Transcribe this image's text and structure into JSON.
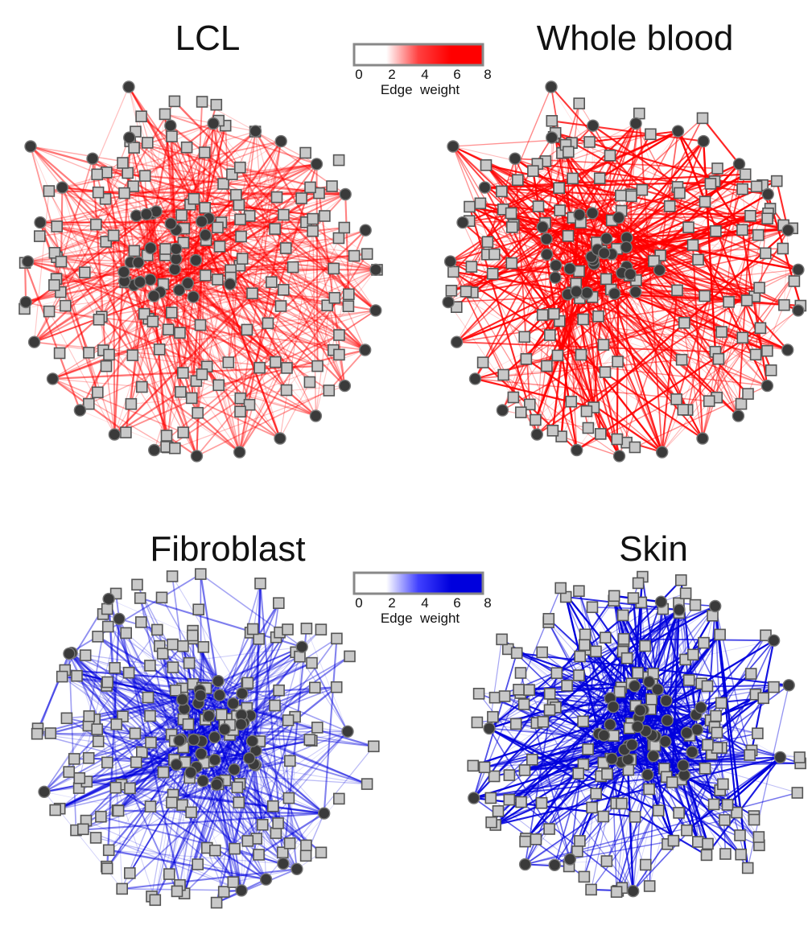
{
  "panels": [
    {
      "id": "lcl",
      "title": "LCL",
      "edge_color": "#ff0000",
      "edge_intensity": 0.45,
      "layout": "ring-split"
    },
    {
      "id": "whole-blood",
      "title": "Whole blood",
      "edge_color": "#ff0000",
      "edge_intensity": 0.85,
      "layout": "ring-split"
    },
    {
      "id": "fibroblast",
      "title": "Fibroblast",
      "edge_color": "#0000dd",
      "edge_intensity": 0.45,
      "layout": "ball"
    },
    {
      "id": "skin",
      "title": "Skin",
      "edge_color": "#0000dd",
      "edge_intensity": 0.9,
      "layout": "ball"
    }
  ],
  "colorbars": [
    {
      "id": "red-scale",
      "gradient": [
        "#ffffff",
        "#ffffff",
        "#ff4040",
        "#ff0000",
        "#ff0000"
      ],
      "ticks": [
        "0",
        "2",
        "4",
        "6",
        "8"
      ],
      "label": "Edge  weight"
    },
    {
      "id": "blue-scale",
      "gradient": [
        "#ffffff",
        "#ffffff",
        "#4040ff",
        "#0000dd",
        "#0000dd"
      ],
      "ticks": [
        "0",
        "2",
        "4",
        "6",
        "8"
      ],
      "label": "Edge  weight"
    }
  ],
  "node_styles": {
    "square_fill": "#c8c8c8",
    "square_stroke": "#555555",
    "circle_fill": "#3a3a3a",
    "circle_stroke": "#777777"
  }
}
